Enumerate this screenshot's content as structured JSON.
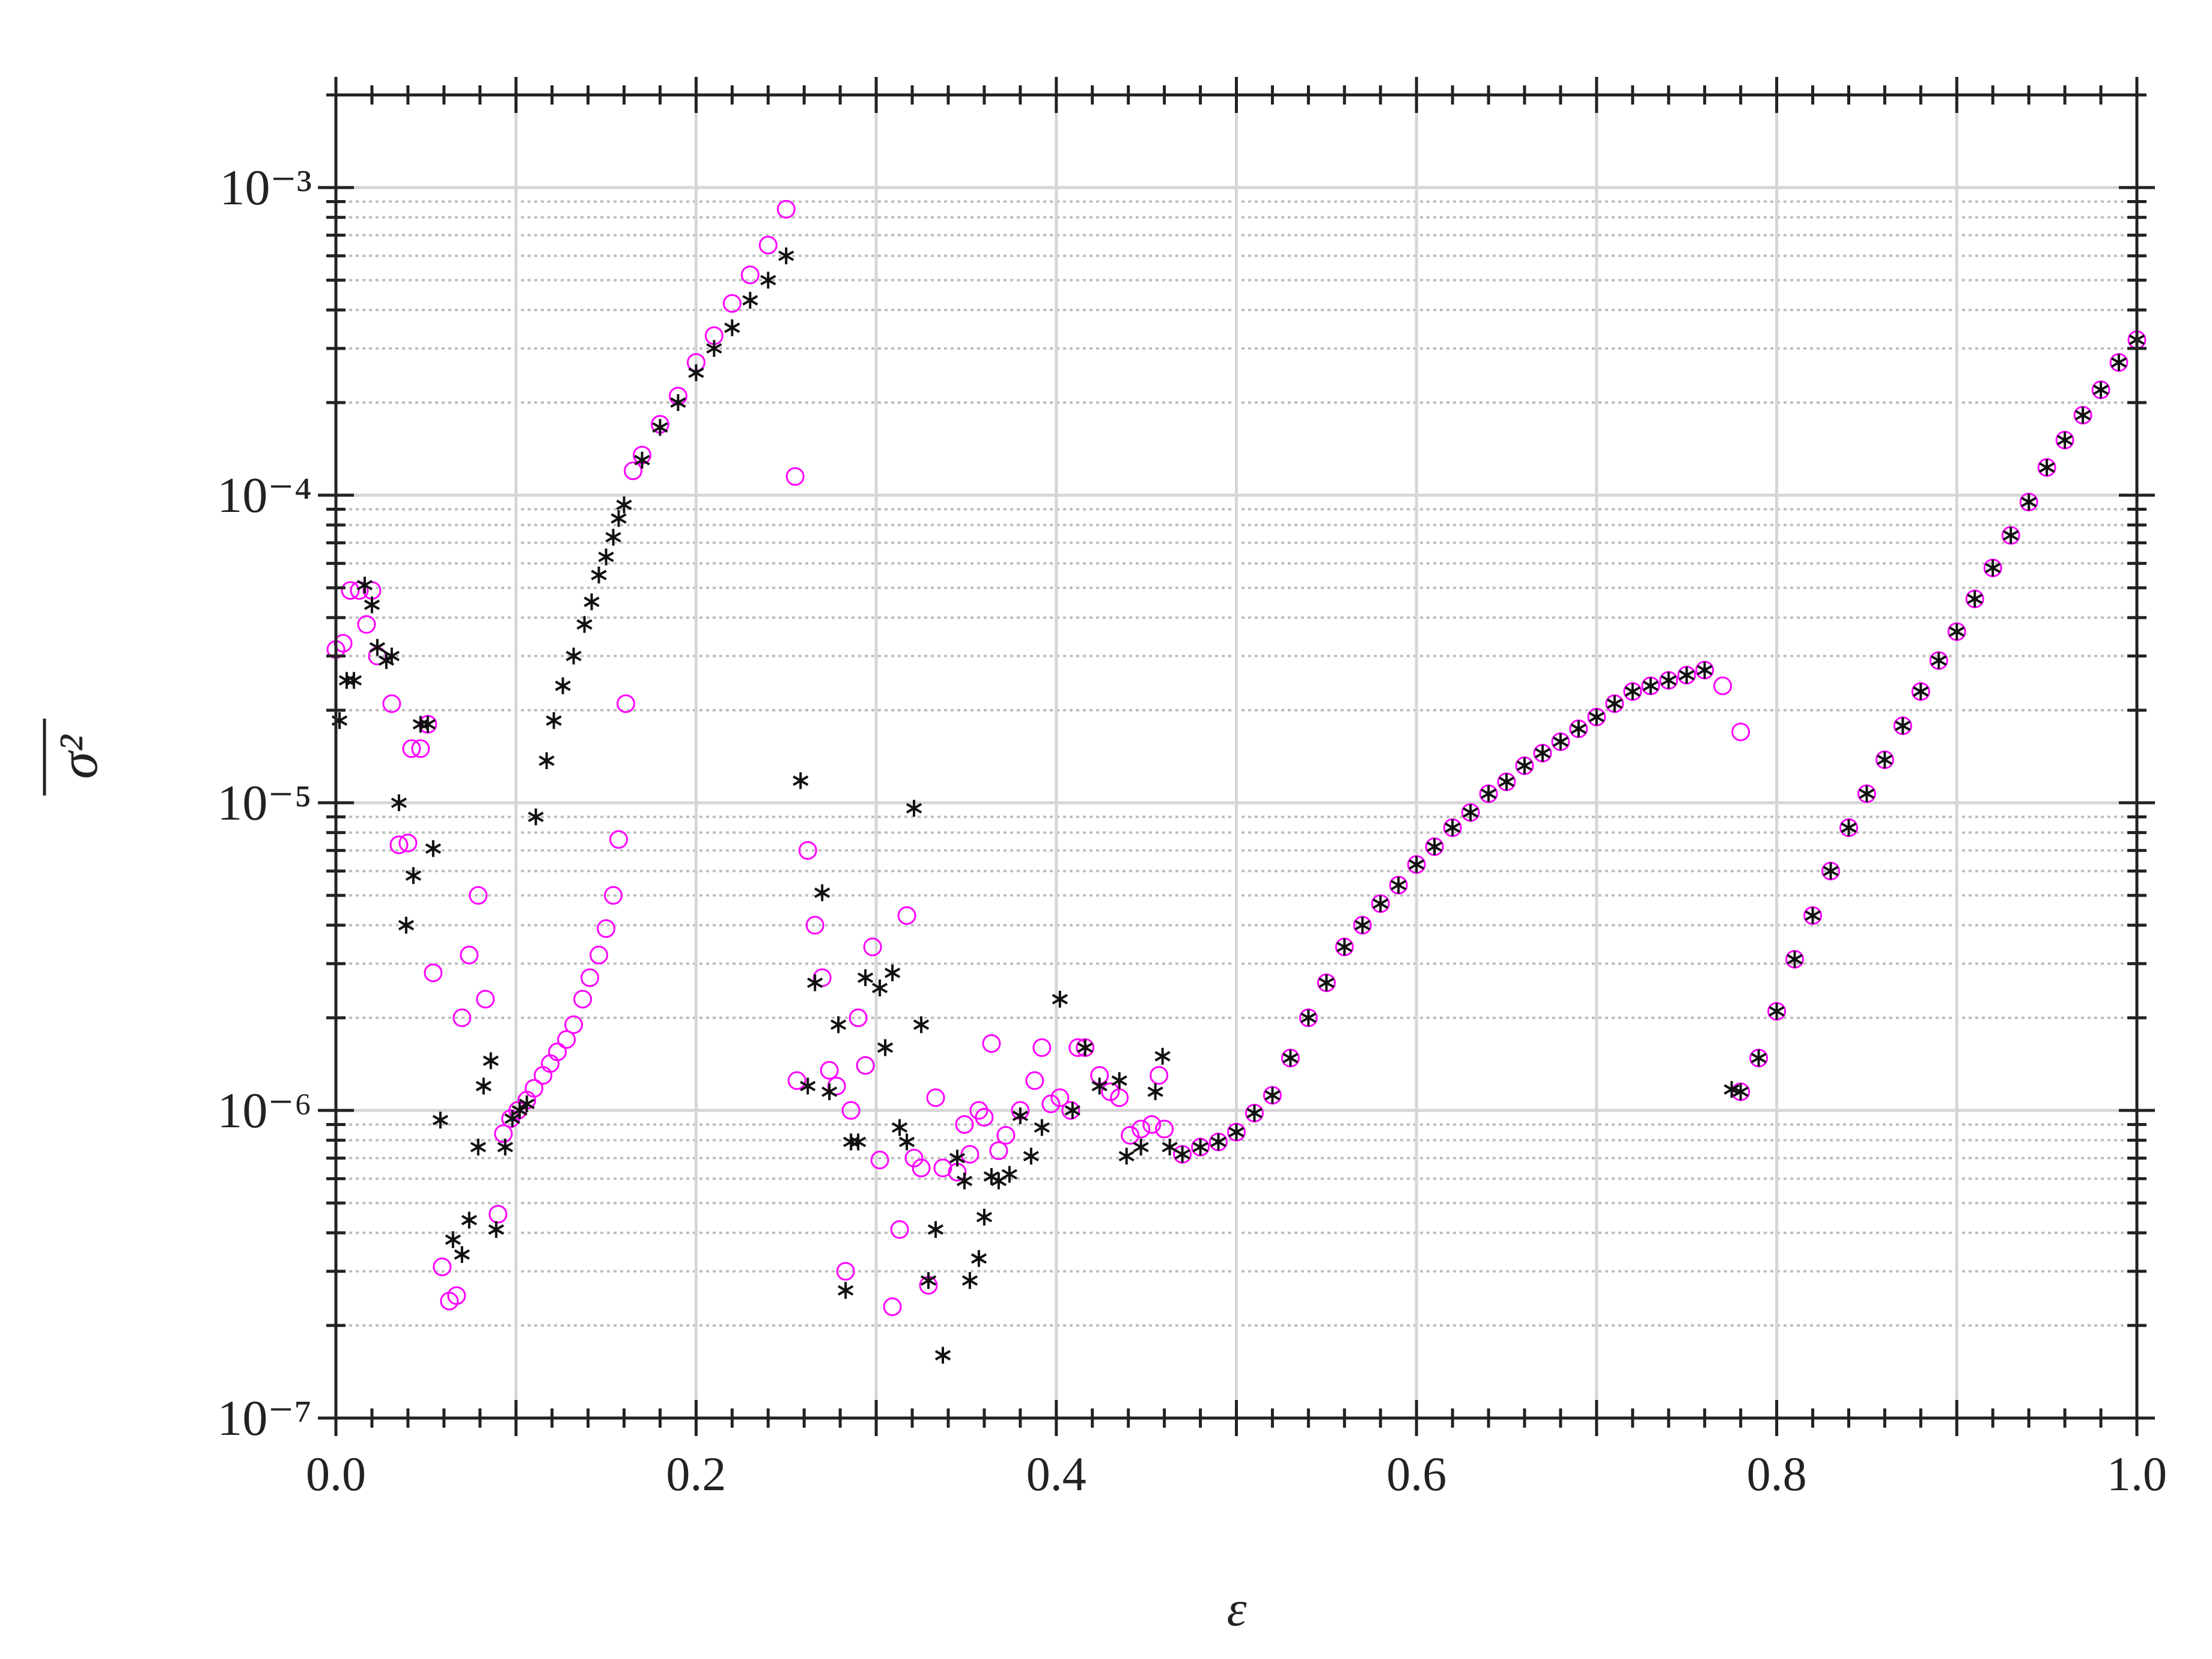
{
  "chart_data": {
    "type": "scatter",
    "xlabel": "ε",
    "ylabel": "σ²",
    "xlim": [
      0,
      1
    ],
    "ylim": [
      1e-07,
      0.002
    ],
    "yscale": "log",
    "grid": true,
    "xticks": [
      {
        "value": 0,
        "label": "0.0"
      },
      0.2,
      0.4,
      0.6,
      0.8,
      {
        "value": 1,
        "label": "1.0"
      }
    ],
    "yticks": [
      {
        "value": 1e-07,
        "label": "10⁻⁷"
      },
      {
        "value": 1e-06,
        "label": "10⁻⁶"
      },
      {
        "value": 1e-05,
        "label": "10⁻⁵"
      },
      {
        "value": 0.0001,
        "label": "10⁻⁴"
      },
      {
        "value": 0.001,
        "label": "10⁻³"
      }
    ],
    "series": [
      {
        "color": "#ff00ff",
        "marker": "circle",
        "x": [
          0.0,
          0.004,
          0.008,
          0.013,
          0.017,
          0.02,
          0.023,
          0.031,
          0.035,
          0.04,
          0.042,
          0.047,
          0.051,
          0.054,
          0.059,
          0.063,
          0.067,
          0.07,
          0.074,
          0.079,
          0.083,
          0.09,
          0.093,
          0.097,
          0.101,
          0.106,
          0.11,
          0.115,
          0.119,
          0.123,
          0.128,
          0.132,
          0.137,
          0.141,
          0.146,
          0.15,
          0.154,
          0.157,
          0.161,
          0.165,
          0.17,
          0.18,
          0.19,
          0.2,
          0.21,
          0.22,
          0.23,
          0.24,
          0.25,
          0.255,
          0.256,
          0.262,
          0.266,
          0.27,
          0.274,
          0.278,
          0.283,
          0.286,
          0.29,
          0.294,
          0.298,
          0.302,
          0.309,
          0.313,
          0.317,
          0.321,
          0.325,
          0.329,
          0.333,
          0.337,
          0.345,
          0.349,
          0.352,
          0.357,
          0.36,
          0.364,
          0.368,
          0.372,
          0.38,
          0.388,
          0.392,
          0.397,
          0.402,
          0.408,
          0.412,
          0.416,
          0.424,
          0.43,
          0.435,
          0.441,
          0.447,
          0.453,
          0.457,
          0.46,
          0.47,
          0.48,
          0.49,
          0.5,
          0.51,
          0.52,
          0.53,
          0.54,
          0.55,
          0.56,
          0.57,
          0.58,
          0.59,
          0.6,
          0.61,
          0.62,
          0.63,
          0.64,
          0.65,
          0.66,
          0.67,
          0.68,
          0.69,
          0.7,
          0.71,
          0.72,
          0.73,
          0.74,
          0.75,
          0.76,
          0.77,
          0.78,
          0.78,
          0.79,
          0.8,
          0.81,
          0.82,
          0.83,
          0.84,
          0.85,
          0.86,
          0.87,
          0.88,
          0.89,
          0.9,
          0.91,
          0.92,
          0.93,
          0.94,
          0.95,
          0.96,
          0.97,
          0.98,
          0.99,
          1.0
        ],
        "values": [
          3.15e-05,
          3.3e-05,
          4.9e-05,
          4.9e-05,
          3.8e-05,
          4.9e-05,
          3e-05,
          2.1e-05,
          7.3e-06,
          7.4e-06,
          1.5e-05,
          1.5e-05,
          1.8e-05,
          2.8e-06,
          3.1e-07,
          2.4e-07,
          2.5e-07,
          2e-06,
          3.2e-06,
          5e-06,
          2.3e-06,
          4.6e-07,
          8.4e-07,
          9.4e-07,
          1e-06,
          1.08e-06,
          1.18e-06,
          1.3e-06,
          1.42e-06,
          1.55e-06,
          1.7e-06,
          1.9e-06,
          2.3e-06,
          2.7e-06,
          3.2e-06,
          3.9e-06,
          5e-06,
          7.6e-06,
          2.1e-05,
          0.00012,
          0.000135,
          0.00017,
          0.00021,
          0.00027,
          0.00033,
          0.00042,
          0.00052,
          0.00065,
          0.00085,
          0.000115,
          1.25e-06,
          7e-06,
          4e-06,
          2.7e-06,
          1.35e-06,
          1.2e-06,
          3e-07,
          1e-06,
          2e-06,
          1.4e-06,
          3.4e-06,
          6.9e-07,
          2.3e-07,
          4.1e-07,
          4.3e-06,
          7e-07,
          6.5e-07,
          2.7e-07,
          1.1e-06,
          6.5e-07,
          6.3e-07,
          9e-07,
          7.2e-07,
          1e-06,
          9.5e-07,
          1.65e-06,
          7.4e-07,
          8.3e-07,
          1e-06,
          1.25e-06,
          1.6e-06,
          1.05e-06,
          1.1e-06,
          1e-06,
          1.6e-06,
          1.6e-06,
          1.3e-06,
          1.15e-06,
          1.1e-06,
          8.3e-07,
          8.7e-07,
          9e-07,
          1.3e-06,
          8.7e-07,
          7.2e-07,
          7.6e-07,
          7.9e-07,
          8.5e-07,
          9.8e-07,
          1.12e-06,
          1.48e-06,
          2e-06,
          2.6e-06,
          3.4e-06,
          4e-06,
          4.7e-06,
          5.4e-06,
          6.3e-06,
          7.2e-06,
          8.3e-06,
          9.3e-06,
          1.07e-05,
          1.17e-05,
          1.32e-05,
          1.45e-05,
          1.58e-05,
          1.74e-05,
          1.9e-05,
          2.1e-05,
          2.3e-05,
          2.4e-05,
          2.5e-05,
          2.6e-05,
          2.7e-05,
          2.4e-05,
          1.7e-05,
          1.15e-06,
          1.48e-06,
          2.1e-06,
          3.1e-06,
          4.3e-06,
          6e-06,
          8.3e-06,
          1.07e-05,
          1.38e-05,
          1.78e-05,
          2.3e-05,
          2.9e-05,
          3.6e-05,
          4.6e-05,
          5.8e-05,
          7.4e-05,
          9.5e-05,
          0.000123,
          0.000151,
          0.000182,
          0.00022,
          0.00027,
          0.00032
        ]
      },
      {
        "color": "#111111",
        "marker": "asterisk",
        "x": [
          0.002,
          0.006,
          0.01,
          0.016,
          0.02,
          0.023,
          0.028,
          0.031,
          0.035,
          0.039,
          0.043,
          0.047,
          0.051,
          0.054,
          0.058,
          0.065,
          0.07,
          0.074,
          0.079,
          0.082,
          0.086,
          0.089,
          0.094,
          0.098,
          0.102,
          0.106,
          0.111,
          0.117,
          0.121,
          0.126,
          0.132,
          0.138,
          0.142,
          0.146,
          0.15,
          0.154,
          0.157,
          0.16,
          0.17,
          0.18,
          0.19,
          0.2,
          0.21,
          0.22,
          0.23,
          0.24,
          0.25,
          0.258,
          0.262,
          0.266,
          0.27,
          0.274,
          0.279,
          0.283,
          0.286,
          0.29,
          0.294,
          0.302,
          0.305,
          0.309,
          0.313,
          0.317,
          0.321,
          0.325,
          0.329,
          0.333,
          0.337,
          0.345,
          0.349,
          0.352,
          0.357,
          0.36,
          0.364,
          0.368,
          0.374,
          0.38,
          0.386,
          0.392,
          0.402,
          0.409,
          0.416,
          0.424,
          0.435,
          0.439,
          0.447,
          0.455,
          0.459,
          0.463,
          0.47,
          0.48,
          0.49,
          0.5,
          0.51,
          0.52,
          0.53,
          0.54,
          0.55,
          0.56,
          0.57,
          0.58,
          0.59,
          0.6,
          0.61,
          0.62,
          0.63,
          0.64,
          0.65,
          0.66,
          0.67,
          0.68,
          0.69,
          0.7,
          0.71,
          0.72,
          0.73,
          0.74,
          0.75,
          0.76,
          0.775,
          0.78,
          0.79,
          0.8,
          0.81,
          0.82,
          0.83,
          0.84,
          0.85,
          0.86,
          0.87,
          0.88,
          0.89,
          0.9,
          0.91,
          0.92,
          0.93,
          0.94,
          0.95,
          0.96,
          0.97,
          0.98,
          0.99,
          1.0
        ],
        "values": [
          1.85e-05,
          2.5e-05,
          2.5e-05,
          5.1e-05,
          4.4e-05,
          3.2e-05,
          2.9e-05,
          3e-05,
          1e-05,
          4e-06,
          5.8e-06,
          1.8e-05,
          1.8e-05,
          7.1e-06,
          9.3e-07,
          3.8e-07,
          3.4e-07,
          4.4e-07,
          7.6e-07,
          1.2e-06,
          1.45e-06,
          4.1e-07,
          7.6e-07,
          9.4e-07,
          1e-06,
          1.05e-06,
          9e-06,
          1.37e-05,
          1.85e-05,
          2.4e-05,
          3e-05,
          3.8e-05,
          4.5e-05,
          5.5e-05,
          6.3e-05,
          7.3e-05,
          8.4e-05,
          9.3e-05,
          0.00013,
          0.000166,
          0.0002,
          0.00025,
          0.0003,
          0.00035,
          0.00043,
          0.0005,
          0.0006,
          1.18e-05,
          1.2e-06,
          2.6e-06,
          5.1e-06,
          1.15e-06,
          1.9e-06,
          2.6e-07,
          7.9e-07,
          7.9e-07,
          2.7e-06,
          2.5e-06,
          1.6e-06,
          2.8e-06,
          8.8e-07,
          7.9e-07,
          9.6e-06,
          1.9e-06,
          2.8e-07,
          4.1e-07,
          1.6e-07,
          7e-07,
          5.9e-07,
          2.8e-07,
          3.3e-07,
          4.5e-07,
          6.1e-07,
          5.9e-07,
          6.2e-07,
          9.6e-07,
          7.1e-07,
          8.8e-07,
          2.3e-06,
          1e-06,
          1.6e-06,
          1.2e-06,
          1.25e-06,
          7.1e-07,
          7.6e-07,
          1.15e-06,
          1.5e-06,
          7.6e-07,
          7.2e-07,
          7.6e-07,
          7.9e-07,
          8.5e-07,
          9.8e-07,
          1.12e-06,
          1.48e-06,
          2e-06,
          2.6e-06,
          3.4e-06,
          4e-06,
          4.7e-06,
          5.4e-06,
          6.3e-06,
          7.2e-06,
          8.3e-06,
          9.3e-06,
          1.07e-05,
          1.17e-05,
          1.32e-05,
          1.45e-05,
          1.58e-05,
          1.74e-05,
          1.9e-05,
          2.1e-05,
          2.3e-05,
          2.4e-05,
          2.5e-05,
          2.6e-05,
          2.7e-05,
          1.17e-06,
          1.15e-06,
          1.48e-06,
          2.1e-06,
          3.1e-06,
          4.3e-06,
          6e-06,
          8.3e-06,
          1.07e-05,
          1.38e-05,
          1.78e-05,
          2.3e-05,
          2.9e-05,
          3.6e-05,
          4.6e-05,
          5.8e-05,
          7.4e-05,
          9.5e-05,
          0.000123,
          0.000151,
          0.000182,
          0.00022,
          0.00027,
          0.00032
        ]
      }
    ]
  }
}
